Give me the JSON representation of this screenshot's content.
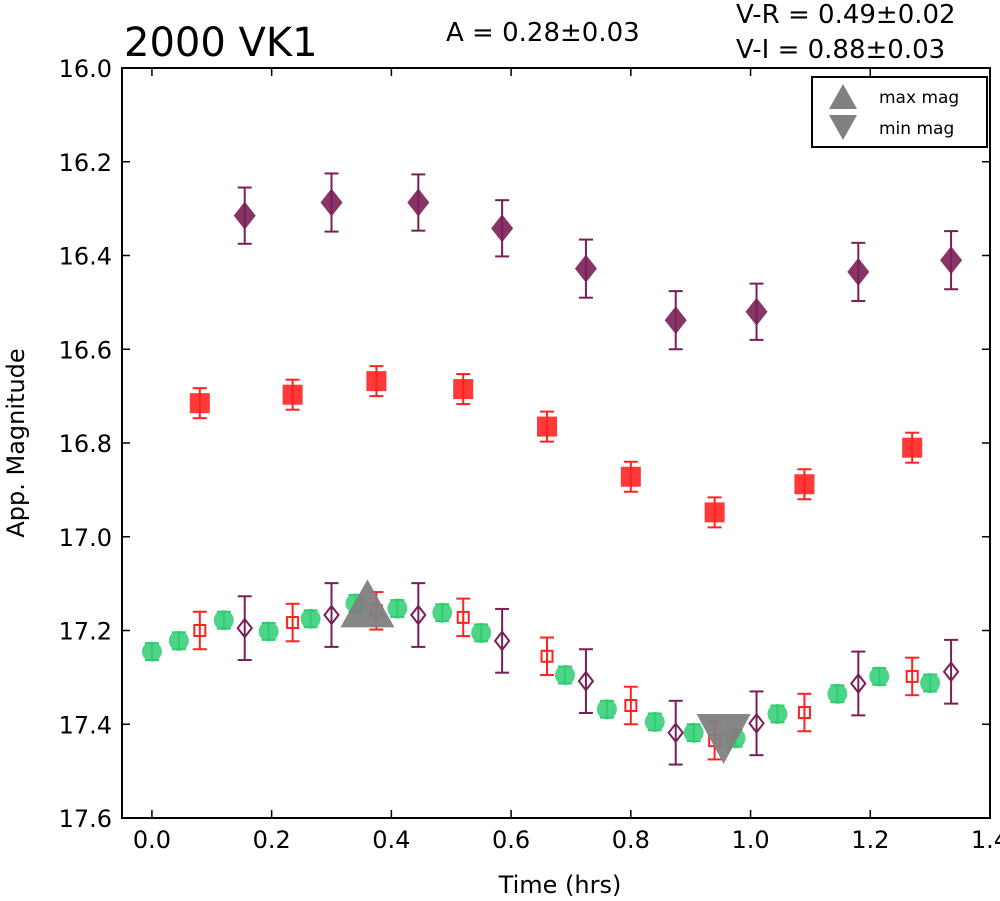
{
  "chart_data": {
    "type": "scatter",
    "title": "2000 VK1",
    "xlabel": "Time (hrs)",
    "ylabel": "App. Magnitude",
    "xlim": [
      -0.05,
      1.4
    ],
    "ylim": [
      17.6,
      16.0
    ],
    "y_inverted": true,
    "grid": false,
    "x_ticks": [
      "0.0",
      "0.2",
      "0.4",
      "0.6",
      "0.8",
      "1.0",
      "1.2",
      "1.4"
    ],
    "y_ticks": [
      "16.0",
      "16.2",
      "16.4",
      "16.6",
      "16.8",
      "17.0",
      "17.2",
      "17.4",
      "17.6"
    ],
    "annotations": {
      "amplitude": "A  = 0.28±0.03",
      "v_r": "V-R = 0.49±0.02",
      "v_i": "V-I  = 0.88±0.03"
    },
    "legend": {
      "position": "top-right",
      "entries": [
        {
          "label": "max mag",
          "marker": "triangle-up",
          "color": "#808080"
        },
        {
          "label": "min mag",
          "marker": "triangle-down",
          "color": "#808080"
        }
      ]
    },
    "series": [
      {
        "marker": "diamond",
        "color": "#7a1e57",
        "filled": true,
        "points": [
          {
            "x": 0.155,
            "y": 16.315,
            "err": 0.06
          },
          {
            "x": 0.3,
            "y": 16.287,
            "err": 0.062
          },
          {
            "x": 0.445,
            "y": 16.287,
            "err": 0.06
          },
          {
            "x": 0.585,
            "y": 16.342,
            "err": 0.06
          },
          {
            "x": 0.725,
            "y": 16.428,
            "err": 0.062
          },
          {
            "x": 0.875,
            "y": 16.538,
            "err": 0.062
          },
          {
            "x": 1.01,
            "y": 16.52,
            "err": 0.06
          },
          {
            "x": 1.18,
            "y": 16.435,
            "err": 0.062
          },
          {
            "x": 1.335,
            "y": 16.41,
            "err": 0.062
          }
        ]
      },
      {
        "marker": "square",
        "color": "#ff2222",
        "filled": true,
        "points": [
          {
            "x": 0.08,
            "y": 16.715,
            "err": 0.032
          },
          {
            "x": 0.235,
            "y": 16.697,
            "err": 0.032
          },
          {
            "x": 0.375,
            "y": 16.668,
            "err": 0.032
          },
          {
            "x": 0.52,
            "y": 16.685,
            "err": 0.032
          },
          {
            "x": 0.66,
            "y": 16.765,
            "err": 0.032
          },
          {
            "x": 0.8,
            "y": 16.872,
            "err": 0.032
          },
          {
            "x": 0.94,
            "y": 16.948,
            "err": 0.032
          },
          {
            "x": 1.09,
            "y": 16.888,
            "err": 0.032
          },
          {
            "x": 1.27,
            "y": 16.81,
            "err": 0.032
          }
        ]
      },
      {
        "marker": "circle",
        "color": "#2ecc71",
        "filled": true,
        "points": [
          {
            "x": 0.0,
            "y": 17.245,
            "err": 0.018
          },
          {
            "x": 0.045,
            "y": 17.222,
            "err": 0.018
          },
          {
            "x": 0.12,
            "y": 17.178,
            "err": 0.018
          },
          {
            "x": 0.195,
            "y": 17.202,
            "err": 0.018
          },
          {
            "x": 0.265,
            "y": 17.175,
            "err": 0.018
          },
          {
            "x": 0.34,
            "y": 17.142,
            "err": 0.018
          },
          {
            "x": 0.41,
            "y": 17.153,
            "err": 0.018
          },
          {
            "x": 0.485,
            "y": 17.162,
            "err": 0.018
          },
          {
            "x": 0.55,
            "y": 17.205,
            "err": 0.018
          },
          {
            "x": 0.69,
            "y": 17.295,
            "err": 0.018
          },
          {
            "x": 0.76,
            "y": 17.368,
            "err": 0.018
          },
          {
            "x": 0.84,
            "y": 17.395,
            "err": 0.018
          },
          {
            "x": 0.905,
            "y": 17.418,
            "err": 0.018
          },
          {
            "x": 0.975,
            "y": 17.43,
            "err": 0.018
          },
          {
            "x": 1.045,
            "y": 17.378,
            "err": 0.018
          },
          {
            "x": 1.145,
            "y": 17.335,
            "err": 0.018
          },
          {
            "x": 1.215,
            "y": 17.298,
            "err": 0.018
          },
          {
            "x": 1.3,
            "y": 17.312,
            "err": 0.018
          }
        ]
      },
      {
        "marker": "square",
        "color": "#ff2222",
        "filled": false,
        "points": [
          {
            "x": 0.08,
            "y": 17.2,
            "err": 0.04
          },
          {
            "x": 0.235,
            "y": 17.183,
            "err": 0.04
          },
          {
            "x": 0.375,
            "y": 17.158,
            "err": 0.04
          },
          {
            "x": 0.52,
            "y": 17.172,
            "err": 0.04
          },
          {
            "x": 0.66,
            "y": 17.255,
            "err": 0.04
          },
          {
            "x": 0.8,
            "y": 17.36,
            "err": 0.04
          },
          {
            "x": 0.94,
            "y": 17.435,
            "err": 0.04
          },
          {
            "x": 1.09,
            "y": 17.375,
            "err": 0.04
          },
          {
            "x": 1.27,
            "y": 17.298,
            "err": 0.04
          }
        ]
      },
      {
        "marker": "diamond",
        "color": "#7a1e57",
        "filled": false,
        "points": [
          {
            "x": 0.155,
            "y": 17.195,
            "err": 0.068
          },
          {
            "x": 0.3,
            "y": 17.167,
            "err": 0.068
          },
          {
            "x": 0.445,
            "y": 17.167,
            "err": 0.068
          },
          {
            "x": 0.585,
            "y": 17.222,
            "err": 0.068
          },
          {
            "x": 0.725,
            "y": 17.308,
            "err": 0.068
          },
          {
            "x": 0.875,
            "y": 17.418,
            "err": 0.068
          },
          {
            "x": 1.01,
            "y": 17.398,
            "err": 0.068
          },
          {
            "x": 1.18,
            "y": 17.313,
            "err": 0.068
          },
          {
            "x": 1.335,
            "y": 17.288,
            "err": 0.068
          }
        ]
      }
    ],
    "extrema": [
      {
        "label": "max mag",
        "marker": "triangle-up",
        "x": 0.36,
        "y": 17.155,
        "color": "#808080"
      },
      {
        "label": "min mag",
        "marker": "triangle-down",
        "x": 0.955,
        "y": 17.425,
        "color": "#808080"
      }
    ]
  }
}
